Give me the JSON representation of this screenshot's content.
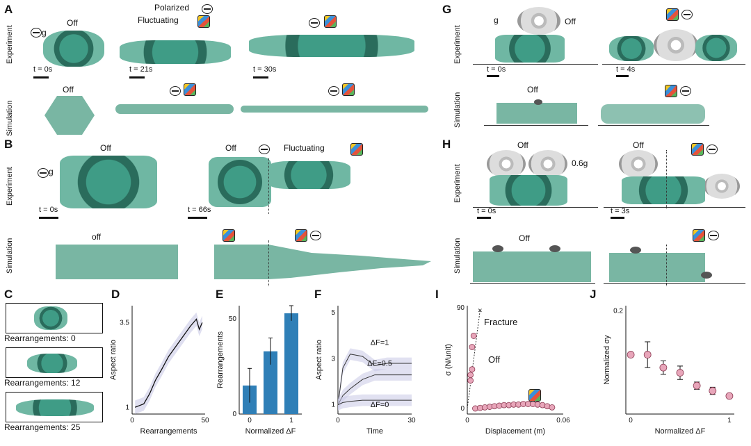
{
  "panels": {
    "A": {
      "label": "A",
      "row_exp": "Experiment",
      "row_sim": "Simulation",
      "off": "Off",
      "polarized": "Polarized",
      "fluctuating": "Fluctuating",
      "g": "g",
      "t0": "t = 0s",
      "t1": "t = 21s",
      "t2": "t = 30s",
      "sim_off": "Off"
    },
    "B": {
      "label": "B",
      "row_exp": "Experiment",
      "row_sim": "Simulation",
      "off": "Off",
      "off2": "Off",
      "fluctuating": "Fluctuating",
      "g": "g",
      "t0": "t = 0s",
      "t1": "t = 66s",
      "sim_off": "off"
    },
    "C": {
      "label": "C",
      "items": [
        "Rearrangements: 0",
        "Rearrangements: 12",
        "Rearrangements: 25"
      ]
    },
    "G": {
      "label": "G",
      "row_exp": "Experiment",
      "row_sim": "Simulation",
      "off": "Off",
      "g": "g",
      "t0": "t = 0s",
      "t1": "t = 4s",
      "sim_off": "Off"
    },
    "H": {
      "label": "H",
      "row_exp": "Experiment",
      "row_sim": "Simulation",
      "off": "Off",
      "off2": "Off",
      "g": "0.6g",
      "t0": "t = 0s",
      "t1": "t = 3s",
      "sim_off": "Off"
    },
    "D": {
      "label": "D"
    },
    "E": {
      "label": "E"
    },
    "F": {
      "label": "F"
    },
    "I": {
      "label": "I",
      "fracture": "Fracture",
      "off": "Off"
    },
    "J": {
      "label": "J"
    }
  },
  "chart_data": [
    {
      "id": "D",
      "type": "line",
      "xlabel": "Rearrangements",
      "ylabel": "Aspect ratio",
      "xticks": [
        "0",
        "50"
      ],
      "yticks": [
        "1",
        "3.5"
      ],
      "xlim": [
        0,
        50
      ],
      "ylim": [
        0.8,
        4.0
      ],
      "series": [
        {
          "x": [
            2,
            5,
            8,
            12,
            16,
            20,
            25,
            30,
            35,
            40,
            44,
            46,
            48
          ],
          "y": [
            1.0,
            1.05,
            1.1,
            1.4,
            1.8,
            2.1,
            2.5,
            2.8,
            3.1,
            3.4,
            3.6,
            3.3,
            3.5
          ]
        }
      ]
    },
    {
      "id": "E",
      "type": "bar",
      "xlabel": "Normalized ΔF",
      "ylabel": "Rearrangements",
      "categories": [
        "0",
        "0.5",
        "1"
      ],
      "yticks": [
        "0",
        "50"
      ],
      "ylim": [
        0,
        57
      ],
      "values": [
        15,
        33,
        53
      ],
      "errors": [
        9,
        7,
        4
      ]
    },
    {
      "id": "F",
      "type": "line",
      "xlabel": "Time",
      "ylabel": "Aspect ratio",
      "xticks": [
        "0",
        "30"
      ],
      "yticks": [
        "1",
        "3",
        "5"
      ],
      "xlim": [
        0,
        30
      ],
      "ylim": [
        0.6,
        5.3
      ],
      "series": [
        {
          "name": "ΔF=1",
          "x": [
            0,
            2,
            5,
            10,
            15,
            20,
            25,
            30
          ],
          "y": [
            1,
            2.6,
            3.2,
            3.1,
            2.7,
            2.8,
            2.8,
            2.8
          ]
        },
        {
          "name": "ΔF=0.5",
          "x": [
            0,
            2,
            5,
            10,
            15,
            20,
            25,
            30
          ],
          "y": [
            1,
            1.4,
            1.7,
            2.1,
            2.3,
            2.3,
            2.3,
            2.3
          ]
        },
        {
          "name": "ΔF=0",
          "x": [
            0,
            2,
            5,
            10,
            15,
            20,
            25,
            30
          ],
          "y": [
            1,
            1.1,
            1.15,
            1.2,
            1.2,
            1.2,
            1.2,
            1.2
          ]
        }
      ]
    },
    {
      "id": "I",
      "type": "scatter",
      "xlabel": "Displacement (m)",
      "ylabel": "σ (N/unit)",
      "xticks": [
        "0",
        "0.06"
      ],
      "yticks": [
        "0",
        "90"
      ],
      "xlim": [
        0,
        0.06
      ],
      "ylim": [
        -5,
        92
      ],
      "series": [
        {
          "name": "Off",
          "x": [
            0.002,
            0.002,
            0.003,
            0.003,
            0.004
          ],
          "y": [
            25,
            30,
            35,
            55,
            65
          ]
        },
        {
          "name": "Fluctuating",
          "x": [
            0.005,
            0.008,
            0.011,
            0.014,
            0.017,
            0.02,
            0.023,
            0.026,
            0.029,
            0.032,
            0.035,
            0.038,
            0.041,
            0.044,
            0.047,
            0.05,
            0.053
          ],
          "y": [
            0,
            0.5,
            1,
            1.5,
            2,
            2.5,
            3,
            3,
            3.5,
            3.5,
            4,
            4,
            4,
            3.5,
            3,
            2,
            1
          ]
        }
      ]
    },
    {
      "id": "J",
      "type": "scatter",
      "xlabel": "Normalized ΔF",
      "ylabel": "Normalized σy",
      "xticks": [
        "0",
        "1"
      ],
      "yticks": [
        "0.2"
      ],
      "xlim": [
        -0.05,
        1.05
      ],
      "ylim": [
        0,
        0.21
      ],
      "series": [
        {
          "x": [
            0,
            0.17,
            0.33,
            0.5,
            0.67,
            0.83,
            1
          ],
          "y": [
            0.115,
            0.115,
            0.09,
            0.08,
            0.055,
            0.045,
            0.035
          ],
          "err": [
            0,
            0.025,
            0.013,
            0.013,
            0.007,
            0.007,
            0
          ]
        }
      ]
    }
  ]
}
